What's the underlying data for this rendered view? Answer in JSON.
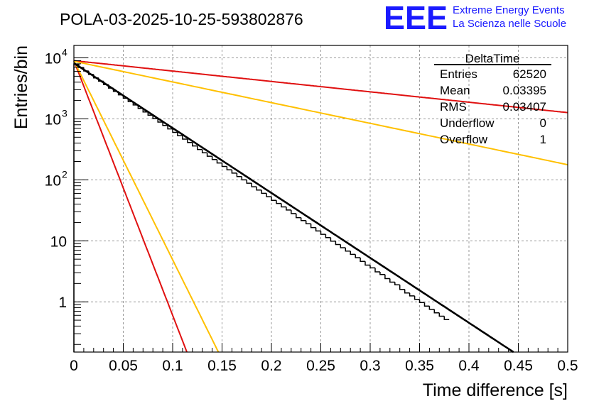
{
  "chart_data": {
    "type": "line",
    "title": "POLA-03-2025-10-25-593802876",
    "xlabel": "Time difference [s]",
    "ylabel": "Entries/bin",
    "xlim": [
      0,
      0.5
    ],
    "ylim": [
      0.15,
      16000
    ],
    "yscale": "log",
    "grid": true,
    "x_ticks": [
      0,
      0.05,
      0.1,
      0.15,
      0.2,
      0.25,
      0.3,
      0.35,
      0.4,
      0.45,
      0.5
    ],
    "x_tick_labels": [
      "0",
      "0.05",
      "0.1",
      "0.15",
      "0.2",
      "0.25",
      "0.3",
      "0.35",
      "0.4",
      "0.45",
      "0.5"
    ],
    "y_ticks": [
      {
        "value": 1,
        "label": "1"
      },
      {
        "value": 10,
        "label": "10"
      },
      {
        "value": 100,
        "label": "10",
        "exp": "2"
      },
      {
        "value": 1000,
        "label": "10",
        "exp": "3"
      },
      {
        "value": 10000,
        "label": "10",
        "exp": "4"
      }
    ],
    "histogram": {
      "name": "DeltaTime",
      "bin_width": 0.005,
      "values": [
        7900,
        6950,
        6100,
        5350,
        4700,
        4150,
        3650,
        3200,
        2820,
        2480,
        2180,
        1920,
        1690,
        1480,
        1300,
        1150,
        1010,
        885,
        780,
        685,
        600,
        530,
        465,
        410,
        360,
        315,
        278,
        244,
        215,
        189,
        166,
        146,
        129,
        113,
        100,
        88,
        77,
        68,
        60,
        53,
        46,
        41,
        36,
        32,
        28,
        24,
        21.5,
        19,
        16.5,
        14.5,
        12.8,
        11.3,
        9.9,
        8.7,
        7.7,
        6.8,
        6,
        5.3,
        4.6,
        4,
        3.6,
        3.1,
        2.8,
        2.4,
        2.1,
        1.9,
        1.6,
        1.4,
        1.25,
        1.1,
        0.97,
        0.85,
        0.75,
        0.66,
        0.58,
        0.51
      ]
    },
    "fits": [
      {
        "name": "fit",
        "color": "#000000",
        "A": 8200,
        "tau": 0.0408
      },
      {
        "name": "red-slow",
        "color": "#e01010",
        "A": 9000,
        "tau": 0.255
      },
      {
        "name": "orange-slow",
        "color": "#ffc000",
        "A": 8800,
        "tau": 0.128
      },
      {
        "name": "red-fast",
        "color": "#e01010",
        "A": 9000,
        "tau": 0.0104
      },
      {
        "name": "orange-fast",
        "color": "#ffc000",
        "A": 9000,
        "tau": 0.0133
      }
    ],
    "stats": {
      "title": "DeltaTime",
      "rows": [
        {
          "label": "Entries",
          "value": "62520"
        },
        {
          "label": "Mean",
          "value": "0.03395"
        },
        {
          "label": "RMS",
          "value": "0.03407"
        },
        {
          "label": "Underflow",
          "value": "0"
        },
        {
          "label": "Overflow",
          "value": "1"
        }
      ]
    }
  },
  "logo": {
    "mark": "EEE",
    "line1": "Extreme Energy Events",
    "line2": "La Scienza nelle Scuole",
    "color": "#1a1aff"
  }
}
